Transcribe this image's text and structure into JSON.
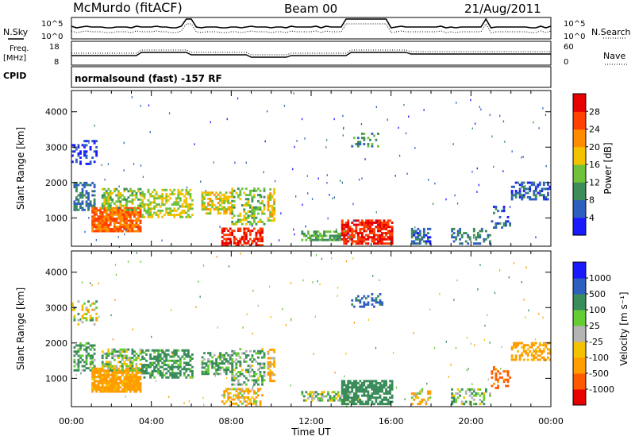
{
  "header": {
    "site": "McMurdo (fitACF)",
    "beam": "Beam 00",
    "date": "21/Aug/2011"
  },
  "left_labels": {
    "nsky": "N.Sky",
    "freq": "Freq.",
    "mhz": "[MHz]",
    "cpid": "CPID"
  },
  "right_labels": {
    "nsearch": "N.Search",
    "nave": "Nave"
  },
  "cpid_text": "normalsound (fast) -157 RF",
  "noise_panel": {
    "ticks": [
      "10^5",
      "10^0"
    ],
    "right_ticks": [
      "10^5",
      "10^0"
    ]
  },
  "freq_panel": {
    "ticks": [
      "18",
      "8"
    ],
    "right_ticks": [
      "60",
      "0"
    ]
  },
  "colors": {
    "power": [
      "#1a1aff",
      "#2e5fbf",
      "#3e8c5a",
      "#6fc23a",
      "#f2c200",
      "#ff8c00",
      "#ff4000",
      "#e60000"
    ],
    "velocity": [
      "#e60000",
      "#ff5a00",
      "#ff9c00",
      "#f2c200",
      "#b4b4b4",
      "#66cc33",
      "#3a8c5a",
      "#2e5fbf",
      "#1a1aff"
    ],
    "ground_scatter": "#b4b4b4"
  },
  "chart_data": [
    {
      "type": "heatmap",
      "title": "Power",
      "xlabel": "",
      "ylabel": "Slant Range [km]",
      "x_ticks": [
        "00:00",
        "04:00",
        "08:00",
        "12:00",
        "16:00",
        "20:00",
        "00:00"
      ],
      "y_ticks": [
        "1000",
        "2000",
        "3000",
        "4000"
      ],
      "ylim": [
        200,
        4600
      ],
      "colorbar": {
        "label": "Power [dB]",
        "ticks": [
          "4",
          "8",
          "12",
          "16",
          "20",
          "24",
          "28"
        ]
      },
      "patches": [
        {
          "t": [
            0.1,
            1.2
          ],
          "r": [
            1200,
            2000
          ],
          "v": 8,
          "d": 0.6
        },
        {
          "t": [
            0.0,
            1.3
          ],
          "r": [
            2500,
            3200
          ],
          "v": 4,
          "d": 0.35
        },
        {
          "t": [
            1.0,
            3.5
          ],
          "r": [
            600,
            1300
          ],
          "v": 24,
          "d": 0.85
        },
        {
          "t": [
            1.5,
            3.5
          ],
          "r": [
            1200,
            1800
          ],
          "v": 14,
          "d": 0.55
        },
        {
          "t": [
            3.5,
            6.0
          ],
          "r": [
            1000,
            1800
          ],
          "v": 16,
          "d": 0.55
        },
        {
          "t": [
            6.5,
            8.0
          ],
          "r": [
            1100,
            1700
          ],
          "v": 18,
          "d": 0.55
        },
        {
          "t": [
            8.0,
            9.6
          ],
          "r": [
            800,
            1800
          ],
          "v": 14,
          "d": 0.45
        },
        {
          "t": [
            9.8,
            10.2
          ],
          "r": [
            900,
            1800
          ],
          "v": 18,
          "d": 0.6
        },
        {
          "t": [
            7.5,
            9.5
          ],
          "r": [
            200,
            700
          ],
          "v": 28,
          "d": 0.5
        },
        {
          "t": [
            11.5,
            14.0
          ],
          "r": [
            350,
            600
          ],
          "v": 12,
          "d": 0.6
        },
        {
          "t": [
            13.5,
            16.0
          ],
          "r": [
            250,
            900
          ],
          "v": 28,
          "d": 0.75
        },
        {
          "t": [
            14.0,
            15.5
          ],
          "r": [
            3000,
            3400
          ],
          "v": 10,
          "d": 0.3
        },
        {
          "t": [
            17.0,
            18.0
          ],
          "r": [
            250,
            700
          ],
          "v": 6,
          "d": 0.45
        },
        {
          "t": [
            19.0,
            21.0
          ],
          "r": [
            250,
            700
          ],
          "v": 8,
          "d": 0.4
        },
        {
          "t": [
            21.0,
            22.0
          ],
          "r": [
            700,
            1300
          ],
          "v": 6,
          "d": 0.3
        },
        {
          "t": [
            22.0,
            24.0
          ],
          "r": [
            1500,
            2000
          ],
          "v": 6,
          "d": 0.5
        }
      ]
    },
    {
      "type": "heatmap",
      "title": "Velocity",
      "xlabel": "Time UT",
      "ylabel": "Slant Range [km]",
      "x_ticks": [
        "00:00",
        "04:00",
        "08:00",
        "12:00",
        "16:00",
        "20:00",
        "00:00"
      ],
      "y_ticks": [
        "1000",
        "2000",
        "3000",
        "4000"
      ],
      "ylim": [
        200,
        4600
      ],
      "colorbar": {
        "label": "Velocity [m s⁻¹]",
        "ticks": [
          "-1000",
          "-500",
          "-100",
          "-25",
          "25",
          "100",
          "500",
          "1000"
        ]
      },
      "patches": [
        {
          "t": [
            0.1,
            1.2
          ],
          "r": [
            1200,
            2000
          ],
          "v": 150,
          "d": 0.55
        },
        {
          "t": [
            0.0,
            1.3
          ],
          "r": [
            2500,
            3200
          ],
          "v": 0,
          "d": 0.3
        },
        {
          "t": [
            1.0,
            3.5
          ],
          "r": [
            600,
            1300
          ],
          "v": -200,
          "d": 0.85
        },
        {
          "t": [
            1.5,
            3.5
          ],
          "r": [
            1200,
            1800
          ],
          "v": 60,
          "d": 0.55
        },
        {
          "t": [
            3.5,
            6.0
          ],
          "r": [
            1000,
            1800
          ],
          "v": 200,
          "d": 0.55
        },
        {
          "t": [
            6.5,
            8.0
          ],
          "r": [
            1100,
            1700
          ],
          "v": 120,
          "d": 0.55
        },
        {
          "t": [
            8.0,
            9.6
          ],
          "r": [
            800,
            1800
          ],
          "v": 100,
          "d": 0.45
        },
        {
          "t": [
            9.8,
            10.2
          ],
          "r": [
            900,
            1800
          ],
          "v": -150,
          "d": 0.6
        },
        {
          "t": [
            7.5,
            9.5
          ],
          "r": [
            200,
            700
          ],
          "v": -80,
          "d": 0.45
        },
        {
          "t": [
            11.5,
            14.0
          ],
          "r": [
            350,
            600
          ],
          "v": 60,
          "d": 0.55
        },
        {
          "t": [
            13.5,
            16.0
          ],
          "r": [
            250,
            900
          ],
          "v": 300,
          "d": 0.7
        },
        {
          "t": [
            14.0,
            15.5
          ],
          "r": [
            3000,
            3400
          ],
          "v": 600,
          "d": 0.3
        },
        {
          "t": [
            17.0,
            18.0
          ],
          "r": [
            250,
            700
          ],
          "v": -100,
          "d": 0.4
        },
        {
          "t": [
            19.0,
            21.0
          ],
          "r": [
            250,
            700
          ],
          "v": 80,
          "d": 0.35
        },
        {
          "t": [
            21.0,
            22.0
          ],
          "r": [
            700,
            1300
          ],
          "v": -600,
          "d": 0.3
        },
        {
          "t": [
            22.0,
            24.0
          ],
          "r": [
            1500,
            2000
          ],
          "v": -200,
          "d": 0.5
        }
      ]
    }
  ]
}
